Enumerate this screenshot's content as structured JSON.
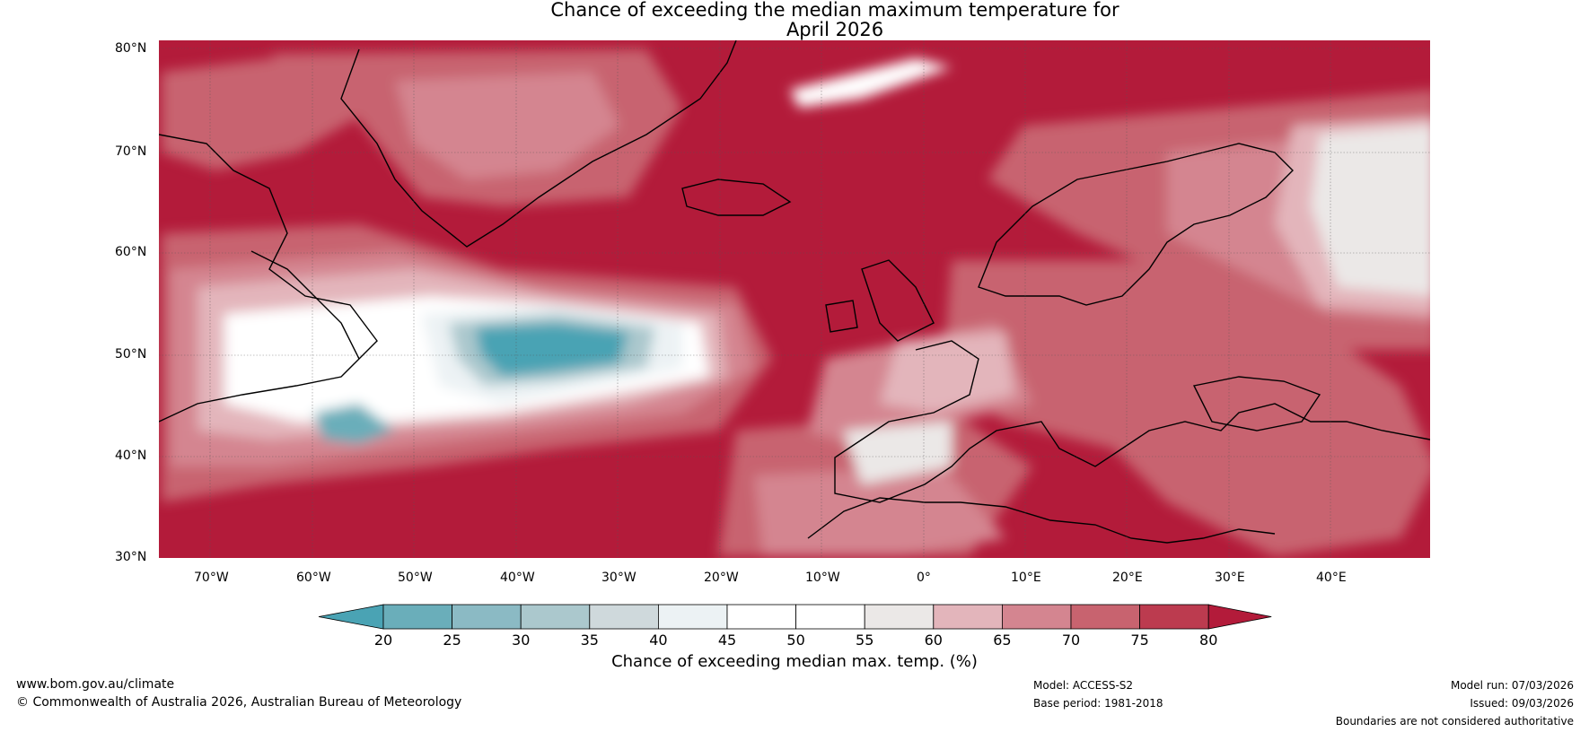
{
  "title": {
    "line1": "Chance of exceeding the median maximum temperature for",
    "line2": "April 2026"
  },
  "axes": {
    "lat_labels": [
      "80°N",
      "70°N",
      "60°N",
      "50°N",
      "40°N",
      "30°N"
    ],
    "lon_labels": [
      "70°W",
      "60°W",
      "50°W",
      "40°W",
      "30°W",
      "20°W",
      "10°W",
      "0°",
      "10°E",
      "20°E",
      "30°E",
      "40°E"
    ]
  },
  "colorbar": {
    "title": "Chance of exceeding median max. temp. (%)",
    "ticks": [
      "20",
      "25",
      "30",
      "35",
      "40",
      "45",
      "50",
      "55",
      "60",
      "65",
      "70",
      "75",
      "80"
    ],
    "colors": [
      "#4aa3b4",
      "#6aaeba",
      "#8bbac4",
      "#abc8cd",
      "#cfd9dc",
      "#ecf2f4",
      "#ffffff",
      "#ffffff",
      "#ebe8e7",
      "#e3b5bb",
      "#d48590",
      "#c8636f",
      "#bc3b4f",
      "#b31b3a"
    ]
  },
  "footer": {
    "url": "www.bom.gov.au/climate",
    "copyright": "© Commonwealth of Australia 2026, Australian Bureau of Meteorology",
    "model": "Model: ACCESS-S2",
    "base_period": "Base period: 1981-2018",
    "model_run": "Model run: 07/03/2026",
    "issued": "Issued: 09/03/2026",
    "disclaimer": "Boundaries are not considered authoritative"
  }
}
